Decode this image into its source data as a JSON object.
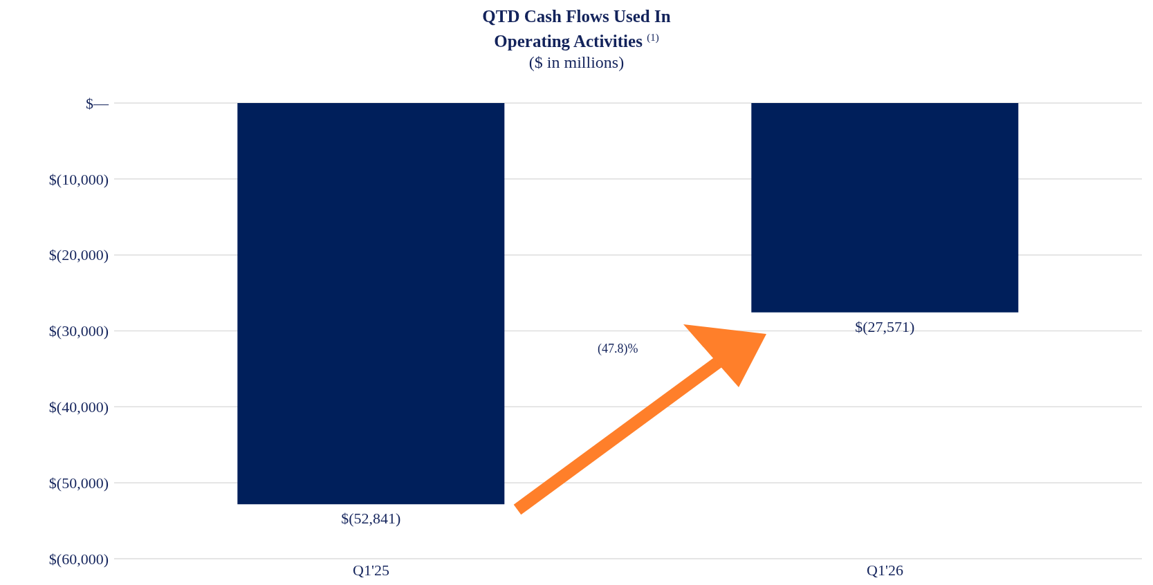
{
  "chart_data": {
    "type": "bar",
    "title": "QTD Cash Flows Used In Operating Activities $^{(1)}$",
    "subtitle": "($ in millions)",
    "categories": [
      "Q1'25",
      "Q1'26"
    ],
    "values": [
      -52841,
      -27571
    ],
    "color": "#001f5b",
    "value_labels": [
      "$(52,841)",
      "$(27,571)"
    ],
    "ylim": [
      -60000,
      0
    ],
    "yticks": [
      {
        "value": -60000,
        "label": "$(60,000)"
      },
      {
        "value": -50000,
        "label": "$(50,000)"
      },
      {
        "value": -40000,
        "label": "$(40,000)"
      },
      {
        "value": -30000,
        "label": "$(30,000)"
      },
      {
        "value": -20000,
        "label": "$(20,000)"
      },
      {
        "value": -10000,
        "label": "$(10,000)"
      },
      {
        "value": 0,
        "label": "$—"
      }
    ],
    "grid": "y",
    "annotations": [
      "(47.8)%"
    ]
  }
}
